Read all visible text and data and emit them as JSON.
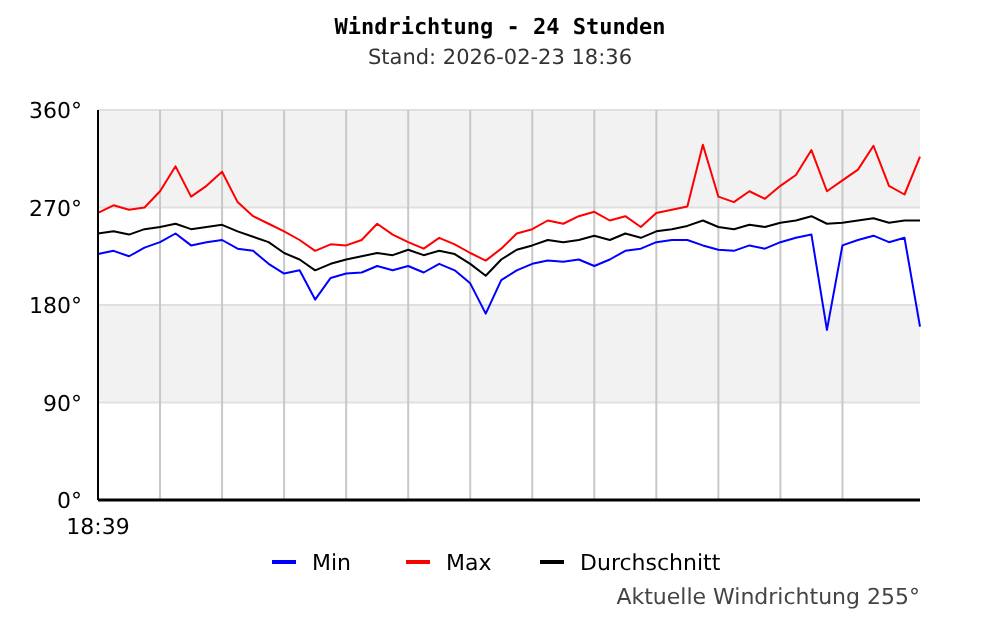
{
  "chart_data": {
    "type": "line",
    "title": "Windrichtung - 24 Stunden",
    "subtitle": "Stand: 2026-02-23 18:36",
    "categories": [
      "18:39",
      null,
      null,
      null,
      null,
      null,
      null,
      null,
      null,
      null,
      null,
      null,
      null,
      null,
      null,
      null,
      null,
      null,
      null,
      null,
      null,
      null,
      null,
      null,
      null,
      null,
      null,
      null,
      null,
      null,
      null,
      null,
      null,
      null,
      null,
      null,
      null,
      null,
      null,
      null,
      null,
      null,
      null,
      null,
      null,
      null,
      null,
      null,
      null,
      null,
      null,
      null,
      null,
      null
    ],
    "series": [
      {
        "name": "Min",
        "color": "#0000ff",
        "values": [
          227,
          230,
          225,
          233,
          238,
          246,
          235,
          238,
          240,
          232,
          230,
          218,
          209,
          212,
          185,
          205,
          209,
          210,
          216,
          212,
          216,
          210,
          218,
          212,
          200,
          172,
          203,
          212,
          218,
          221,
          220,
          222,
          216,
          222,
          230,
          232,
          238,
          240,
          240,
          235,
          231,
          230,
          235,
          232,
          238,
          242,
          245,
          157,
          235,
          240,
          244,
          238,
          242,
          160
        ]
      },
      {
        "name": "Max",
        "color": "#ff0000",
        "values": [
          265,
          272,
          268,
          270,
          285,
          308,
          280,
          290,
          303,
          275,
          262,
          255,
          248,
          240,
          230,
          236,
          235,
          240,
          255,
          245,
          238,
          232,
          242,
          236,
          228,
          221,
          232,
          246,
          250,
          258,
          255,
          262,
          266,
          258,
          262,
          252,
          265,
          268,
          271,
          328,
          280,
          275,
          285,
          278,
          290,
          300,
          323,
          285,
          295,
          305,
          327,
          290,
          282,
          317
        ]
      },
      {
        "name": "Durchschnitt",
        "color": "#000000",
        "values": [
          246,
          248,
          245,
          250,
          252,
          255,
          250,
          252,
          254,
          248,
          243,
          238,
          228,
          222,
          212,
          218,
          222,
          225,
          228,
          226,
          231,
          226,
          230,
          227,
          218,
          207,
          222,
          231,
          235,
          240,
          238,
          240,
          244,
          240,
          246,
          242,
          248,
          250,
          253,
          258,
          252,
          250,
          254,
          252,
          256,
          258,
          262,
          255,
          256,
          258,
          260,
          256,
          258,
          258
        ]
      }
    ],
    "ylim": [
      0,
      360
    ],
    "yticks": [
      {
        "value": 0,
        "label": "0°"
      },
      {
        "value": 90,
        "label": "90°"
      },
      {
        "value": 180,
        "label": "180°"
      },
      {
        "value": 270,
        "label": "270°"
      },
      {
        "value": 360,
        "label": "360°"
      }
    ],
    "bands": [
      {
        "axis": "y",
        "from": 90,
        "to": 180,
        "color": "#f2f2f2"
      },
      {
        "axis": "y",
        "from": 270,
        "to": 360,
        "color": "#f2f2f2"
      }
    ],
    "grid": true,
    "legend": "bottom",
    "marker": "none",
    "line_style": "solid",
    "annotations": [
      "Aktuelle Windrichtung 255°"
    ]
  }
}
